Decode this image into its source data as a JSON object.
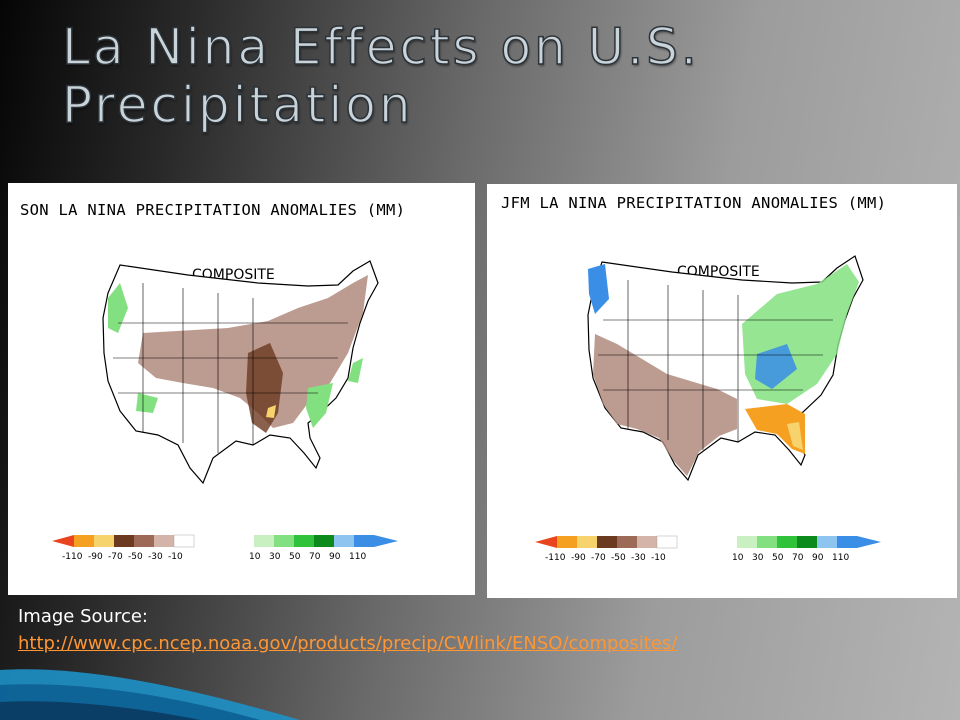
{
  "slide": {
    "title": "La Nina Effects on U.S. Precipitation",
    "source_label": "Image Source:",
    "source_url": "http://www.cpc.ncep.noaa.gov/products/precip/CWlink/ENSO/composites/"
  },
  "maps": [
    {
      "title": "SON LA NINA PRECIPITATION ANOMALIES (MM)",
      "subtitle": "COMPOSITE"
    },
    {
      "title": "JFM LA NINA PRECIPITATION ANOMALIES (MM)",
      "subtitle": "COMPOSITE"
    }
  ],
  "legend": {
    "ticks": [
      "-110",
      "-90",
      "-70",
      "-50",
      "-30",
      "-10",
      "10",
      "30",
      "50",
      "70",
      "90",
      "110"
    ],
    "colors": {
      "lt_110": "#e8441e",
      "m110_m90": "#f5a020",
      "m90_m70": "#f7d36e",
      "m70_m50": "#6b3a1f",
      "m50_m30": "#9c6a56",
      "m30_m10": "#d4b4a8",
      "m10_10": "#ffffff",
      "p10_30": "#c8f0c0",
      "p30_50": "#82e080",
      "p50_70": "#2fc23a",
      "p70_90": "#0c8a1c",
      "p90_110": "#8ec4f0",
      "gt_110": "#3a8ee6"
    }
  }
}
